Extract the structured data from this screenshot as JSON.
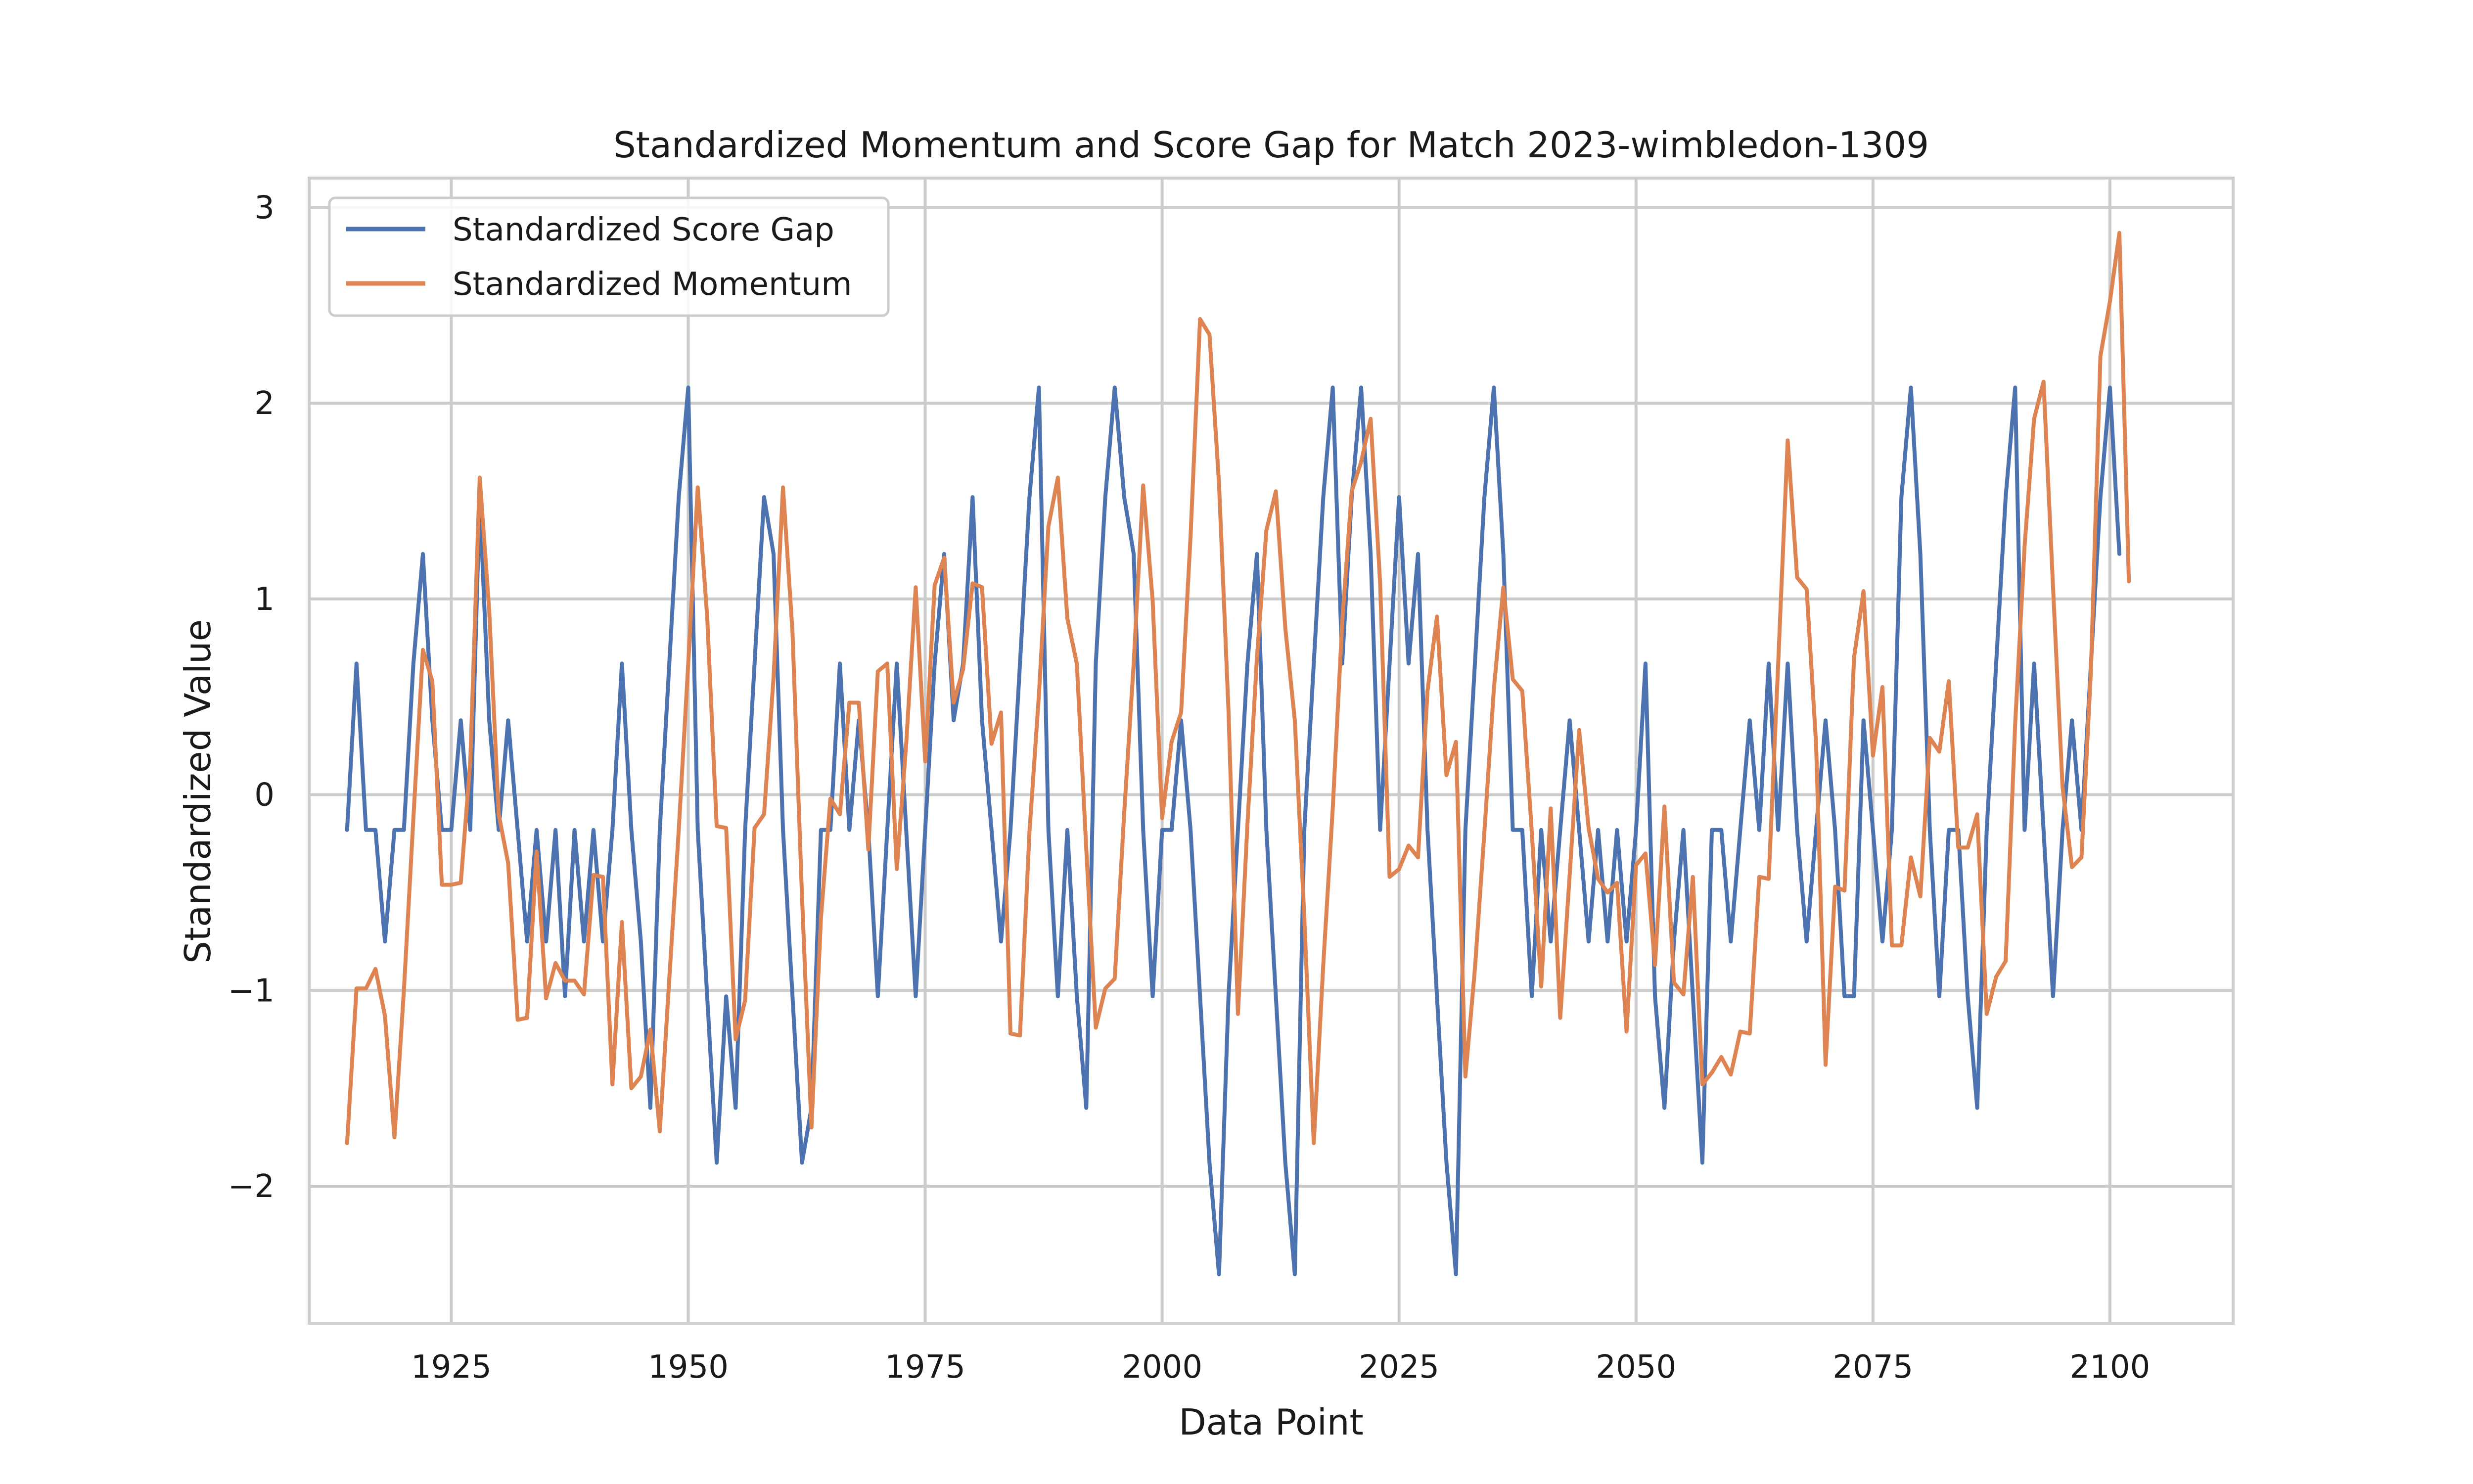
{
  "chart_data": {
    "type": "line",
    "title": "Standardized Momentum and Score Gap for Match 2023-wimbledon-1309",
    "xlabel": "Data Point",
    "ylabel": "Standardized Value",
    "xlim": [
      1910,
      2113
    ],
    "ylim": [
      -2.7,
      3.15
    ],
    "x_ticks": [
      1925,
      1950,
      1975,
      2000,
      2025,
      2050,
      2075,
      2100
    ],
    "y_ticks": [
      -2,
      -1,
      0,
      1,
      2,
      3
    ],
    "y_tick_labels": [
      "−2",
      "−1",
      "0",
      "1",
      "2",
      "3"
    ],
    "grid": true,
    "legend_position": "top-left",
    "x_start": 1914,
    "series": [
      {
        "name": "Standardized Score Gap",
        "color": "#4c72b0",
        "values": [
          -0.18,
          0.67,
          -0.18,
          -0.18,
          -0.75,
          -0.18,
          -0.18,
          0.67,
          1.23,
          0.38,
          -0.18,
          -0.18,
          0.38,
          -0.18,
          1.52,
          0.38,
          -0.18,
          0.38,
          -0.18,
          -0.75,
          -0.18,
          -0.75,
          -0.18,
          -1.03,
          -0.18,
          -0.75,
          -0.18,
          -0.75,
          -0.18,
          0.67,
          -0.18,
          -0.75,
          -1.6,
          -0.18,
          0.67,
          1.52,
          2.08,
          -0.18,
          -1.03,
          -1.88,
          -1.03,
          -1.6,
          -0.18,
          0.67,
          1.52,
          1.23,
          -0.18,
          -1.03,
          -1.88,
          -1.6,
          -0.18,
          -0.18,
          0.67,
          -0.18,
          0.38,
          -0.18,
          -1.03,
          -0.18,
          0.67,
          -0.18,
          -1.03,
          -0.18,
          0.67,
          1.23,
          0.38,
          0.67,
          1.52,
          0.38,
          -0.18,
          -0.75,
          -0.18,
          0.67,
          1.52,
          2.08,
          -0.18,
          -1.03,
          -0.18,
          -1.03,
          -1.6,
          0.67,
          1.52,
          2.08,
          1.52,
          1.23,
          -0.18,
          -1.03,
          -0.18,
          -0.18,
          0.38,
          -0.18,
          -1.03,
          -1.88,
          -2.45,
          -1.03,
          -0.18,
          0.67,
          1.23,
          -0.18,
          -1.03,
          -1.88,
          -2.45,
          -0.18,
          0.67,
          1.52,
          2.08,
          0.67,
          1.52,
          2.08,
          1.23,
          -0.18,
          0.67,
          1.52,
          0.67,
          1.23,
          -0.18,
          -1.03,
          -1.88,
          -2.45,
          -0.18,
          0.67,
          1.52,
          2.08,
          1.23,
          -0.18,
          -0.18,
          -1.03,
          -0.18,
          -0.75,
          -0.18,
          0.38,
          -0.18,
          -0.75,
          -0.18,
          -0.75,
          -0.18,
          -0.75,
          -0.18,
          0.67,
          -1.03,
          -1.6,
          -0.75,
          -0.18,
          -1.03,
          -1.88,
          -0.18,
          -0.18,
          -0.75,
          -0.18,
          0.38,
          -0.18,
          0.67,
          -0.18,
          0.67,
          -0.18,
          -0.75,
          -0.18,
          0.38,
          -0.18,
          -1.03,
          -1.03,
          0.38,
          -0.18,
          -0.75,
          -0.18,
          1.52,
          2.08,
          1.23,
          -0.18,
          -1.03,
          -0.18,
          -0.18,
          -1.03,
          -1.6,
          -0.18,
          0.67,
          1.52,
          2.08,
          -0.18,
          0.67,
          -0.18,
          -1.03,
          -0.18,
          0.38,
          -0.18,
          0.67,
          1.52,
          2.08,
          1.23
        ]
      },
      {
        "name": "Standardized Momentum",
        "color": "#dd8452",
        "values": [
          -1.78,
          -0.99,
          -0.99,
          -0.89,
          -1.13,
          -1.75,
          -1.0,
          -0.12,
          0.74,
          0.58,
          -0.46,
          -0.46,
          -0.45,
          0.17,
          1.62,
          0.94,
          -0.1,
          -0.35,
          -1.15,
          -1.14,
          -0.29,
          -1.04,
          -0.86,
          -0.95,
          -0.95,
          -1.02,
          -0.41,
          -0.42,
          -1.48,
          -0.65,
          -1.5,
          -1.44,
          -1.2,
          -1.72,
          -0.94,
          -0.18,
          0.67,
          1.57,
          0.91,
          -0.16,
          -0.17,
          -1.25,
          -1.05,
          -0.17,
          -0.1,
          0.6,
          1.57,
          0.83,
          -0.52,
          -1.7,
          -0.63,
          -0.02,
          -0.1,
          0.47,
          0.47,
          -0.28,
          0.63,
          0.67,
          -0.38,
          0.26,
          1.06,
          0.17,
          1.07,
          1.21,
          0.47,
          0.64,
          1.08,
          1.06,
          0.26,
          0.42,
          -1.22,
          -1.23,
          -0.19,
          0.51,
          1.37,
          1.62,
          0.9,
          0.67,
          -0.28,
          -1.19,
          -0.99,
          -0.94,
          -0.09,
          0.67,
          1.58,
          0.99,
          -0.12,
          0.27,
          0.42,
          1.32,
          2.43,
          2.35,
          1.59,
          0.43,
          -1.12,
          -0.15,
          0.7,
          1.35,
          1.55,
          0.85,
          0.38,
          -0.63,
          -1.78,
          -0.87,
          -0.07,
          0.88,
          1.55,
          1.7,
          1.92,
          1.08,
          -0.42,
          -0.38,
          -0.26,
          -0.32,
          0.53,
          0.91,
          0.1,
          0.27,
          -1.44,
          -0.89,
          -0.19,
          0.54,
          1.06,
          0.59,
          0.53,
          -0.19,
          -0.98,
          -0.07,
          -1.14,
          -0.41,
          0.33,
          -0.17,
          -0.43,
          -0.5,
          -0.45,
          -1.21,
          -0.36,
          -0.3,
          -0.87,
          -0.06,
          -0.96,
          -1.02,
          -0.42,
          -1.48,
          -1.42,
          -1.34,
          -1.43,
          -1.21,
          -1.22,
          -0.42,
          -0.43,
          0.67,
          1.81,
          1.11,
          1.05,
          0.26,
          -1.38,
          -0.47,
          -0.49,
          0.7,
          1.04,
          0.2,
          0.55,
          -0.77,
          -0.77,
          -0.32,
          -0.52,
          0.29,
          0.22,
          0.58,
          -0.27,
          -0.27,
          -0.1,
          -1.12,
          -0.93,
          -0.85,
          0.36,
          1.27,
          1.92,
          2.11,
          1.06,
          0.04,
          -0.37,
          -0.32,
          0.64,
          2.24,
          2.52,
          2.87,
          1.09
        ]
      }
    ]
  }
}
